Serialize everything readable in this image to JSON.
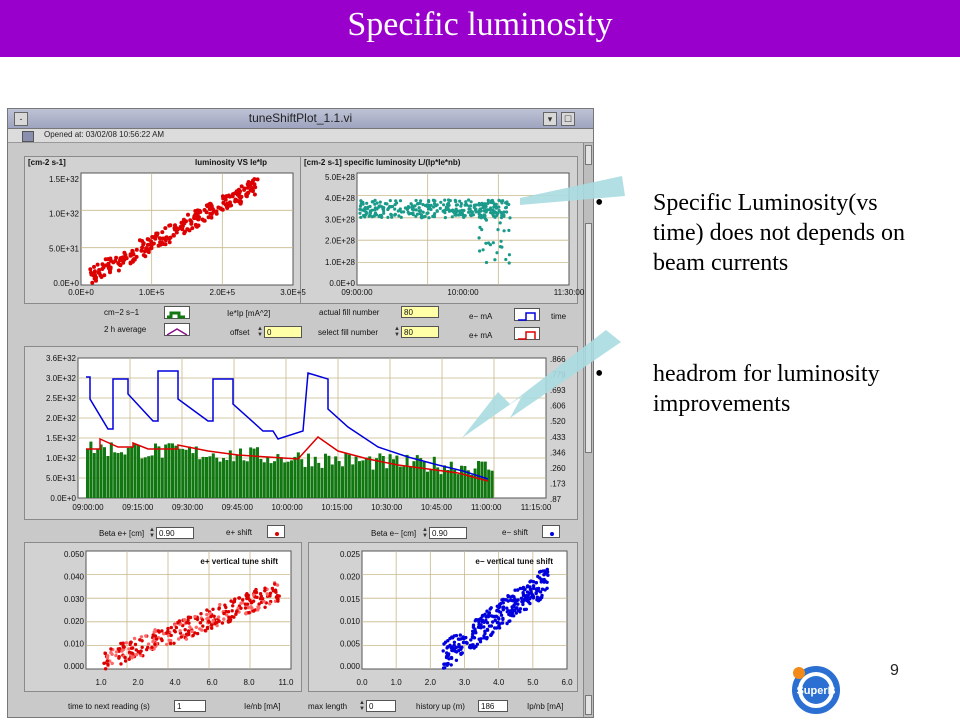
{
  "slide": {
    "title": "Specific  luminosity",
    "page_number": "9",
    "logo_text": "SuperB"
  },
  "window": {
    "title": "tuneShiftPlot_1.1.vi",
    "opened_at": "Opened at:  03/02/08 10:56:22 AM",
    "menu_glyph": "-",
    "close_glyph": "☐"
  },
  "plots": {
    "lum_vs_current": {
      "unit_label": "[cm-2 s-1]",
      "title": "luminosity VS Ie*Ip",
      "y_ticks": [
        "1.5E+32",
        "1.0E+32",
        "5.0E+31",
        "0.0E+0"
      ],
      "x_ticks": [
        "0.0E+0",
        "1.0E+5",
        "2.0E+5",
        "3.0E+5"
      ]
    },
    "spec_lum": {
      "title": "[cm-2 s-1]  specific luminosity L/(Ip*Ie*nb)",
      "y_ticks": [
        "5.0E+28",
        "4.0E+28",
        "3.0E+28",
        "2.0E+28",
        "1.0E+28",
        "0.0E+0"
      ],
      "x_ticks": [
        "09:00:00",
        "10:00:00",
        "11:30:00"
      ]
    },
    "timeline": {
      "y_ticks": [
        "3.6E+32",
        "3.0E+32",
        "2.5E+32",
        "2.0E+32",
        "1.5E+32",
        "1.0E+32",
        "5.0E+31",
        "0.0E+0"
      ],
      "y2_ticks": [
        ".866",
        ".779",
        ".693",
        ".606",
        ".520",
        ".433",
        ".346",
        ".260",
        ".173",
        ".87"
      ],
      "x_ticks": [
        "09:00:00",
        "09:15:00",
        "09:30:00",
        "09:45:00",
        "10:00:00",
        "10:15:00",
        "10:30:00",
        "10:45:00",
        "11:00:00",
        "11:15:00"
      ]
    },
    "tune_e_plus": {
      "title": "e+ vertical tune shift",
      "y_ticks": [
        "0.050",
        "0.040",
        "0.030",
        "0.020",
        "0.010",
        "0.000"
      ],
      "x_ticks": [
        "1.0",
        "2.0",
        "4.0",
        "6.0",
        "8.0",
        "11.0"
      ]
    },
    "tune_e_minus": {
      "title": "e− vertical tune shift",
      "y_ticks": [
        "0.025",
        "0.020",
        "0.015",
        "0.010",
        "0.005",
        "0.000"
      ],
      "x_ticks": [
        "0.0",
        "1.0",
        "2.0",
        "3.0",
        "4.0",
        "5.0",
        "6.0"
      ]
    }
  },
  "controls": {
    "unit_legend": "cm−2 s−1",
    "avg_legend": "2 h average",
    "ie_ip_label": "Ie*Ip [mA^2]",
    "offset_label": "offset",
    "offset_value": "0",
    "actual_fill_label": "actual fill number",
    "actual_fill_value": "80",
    "select_fill_label": "select fill number",
    "select_fill_value": "80",
    "e_minus_ma": "e− mA",
    "e_plus_ma": "e+ mA",
    "time_label": "time",
    "beta_e_plus_label": "Beta e+ [cm]",
    "beta_e_plus_value": "0.90",
    "e_plus_shift": "e+ shift",
    "beta_e_minus_label": "Beta e− [cm]",
    "beta_e_minus_value": "0.90",
    "e_minus_shift": "e− shift",
    "time_to_next_label": "time to next reading (s)",
    "time_to_next_value": "1",
    "ie_nb_label": "Ie/nb [mA]",
    "max_length_label": "max length",
    "max_length_value": "0",
    "history_label": "history up (m)",
    "history_value": "186",
    "ip_nb_label": "Ip/nb [mA]"
  },
  "bullets": [
    "Specific Luminosity(vs time) does not depends on beam currents",
    "headrom for luminosity improvements"
  ],
  "colors": {
    "title_bg": "#9900cc",
    "red_data": "#dd0000",
    "teal_data": "#1a9a8a",
    "blue_data": "#0000dd",
    "green_bars": "#117711",
    "arrow": "#a8dce0"
  }
}
